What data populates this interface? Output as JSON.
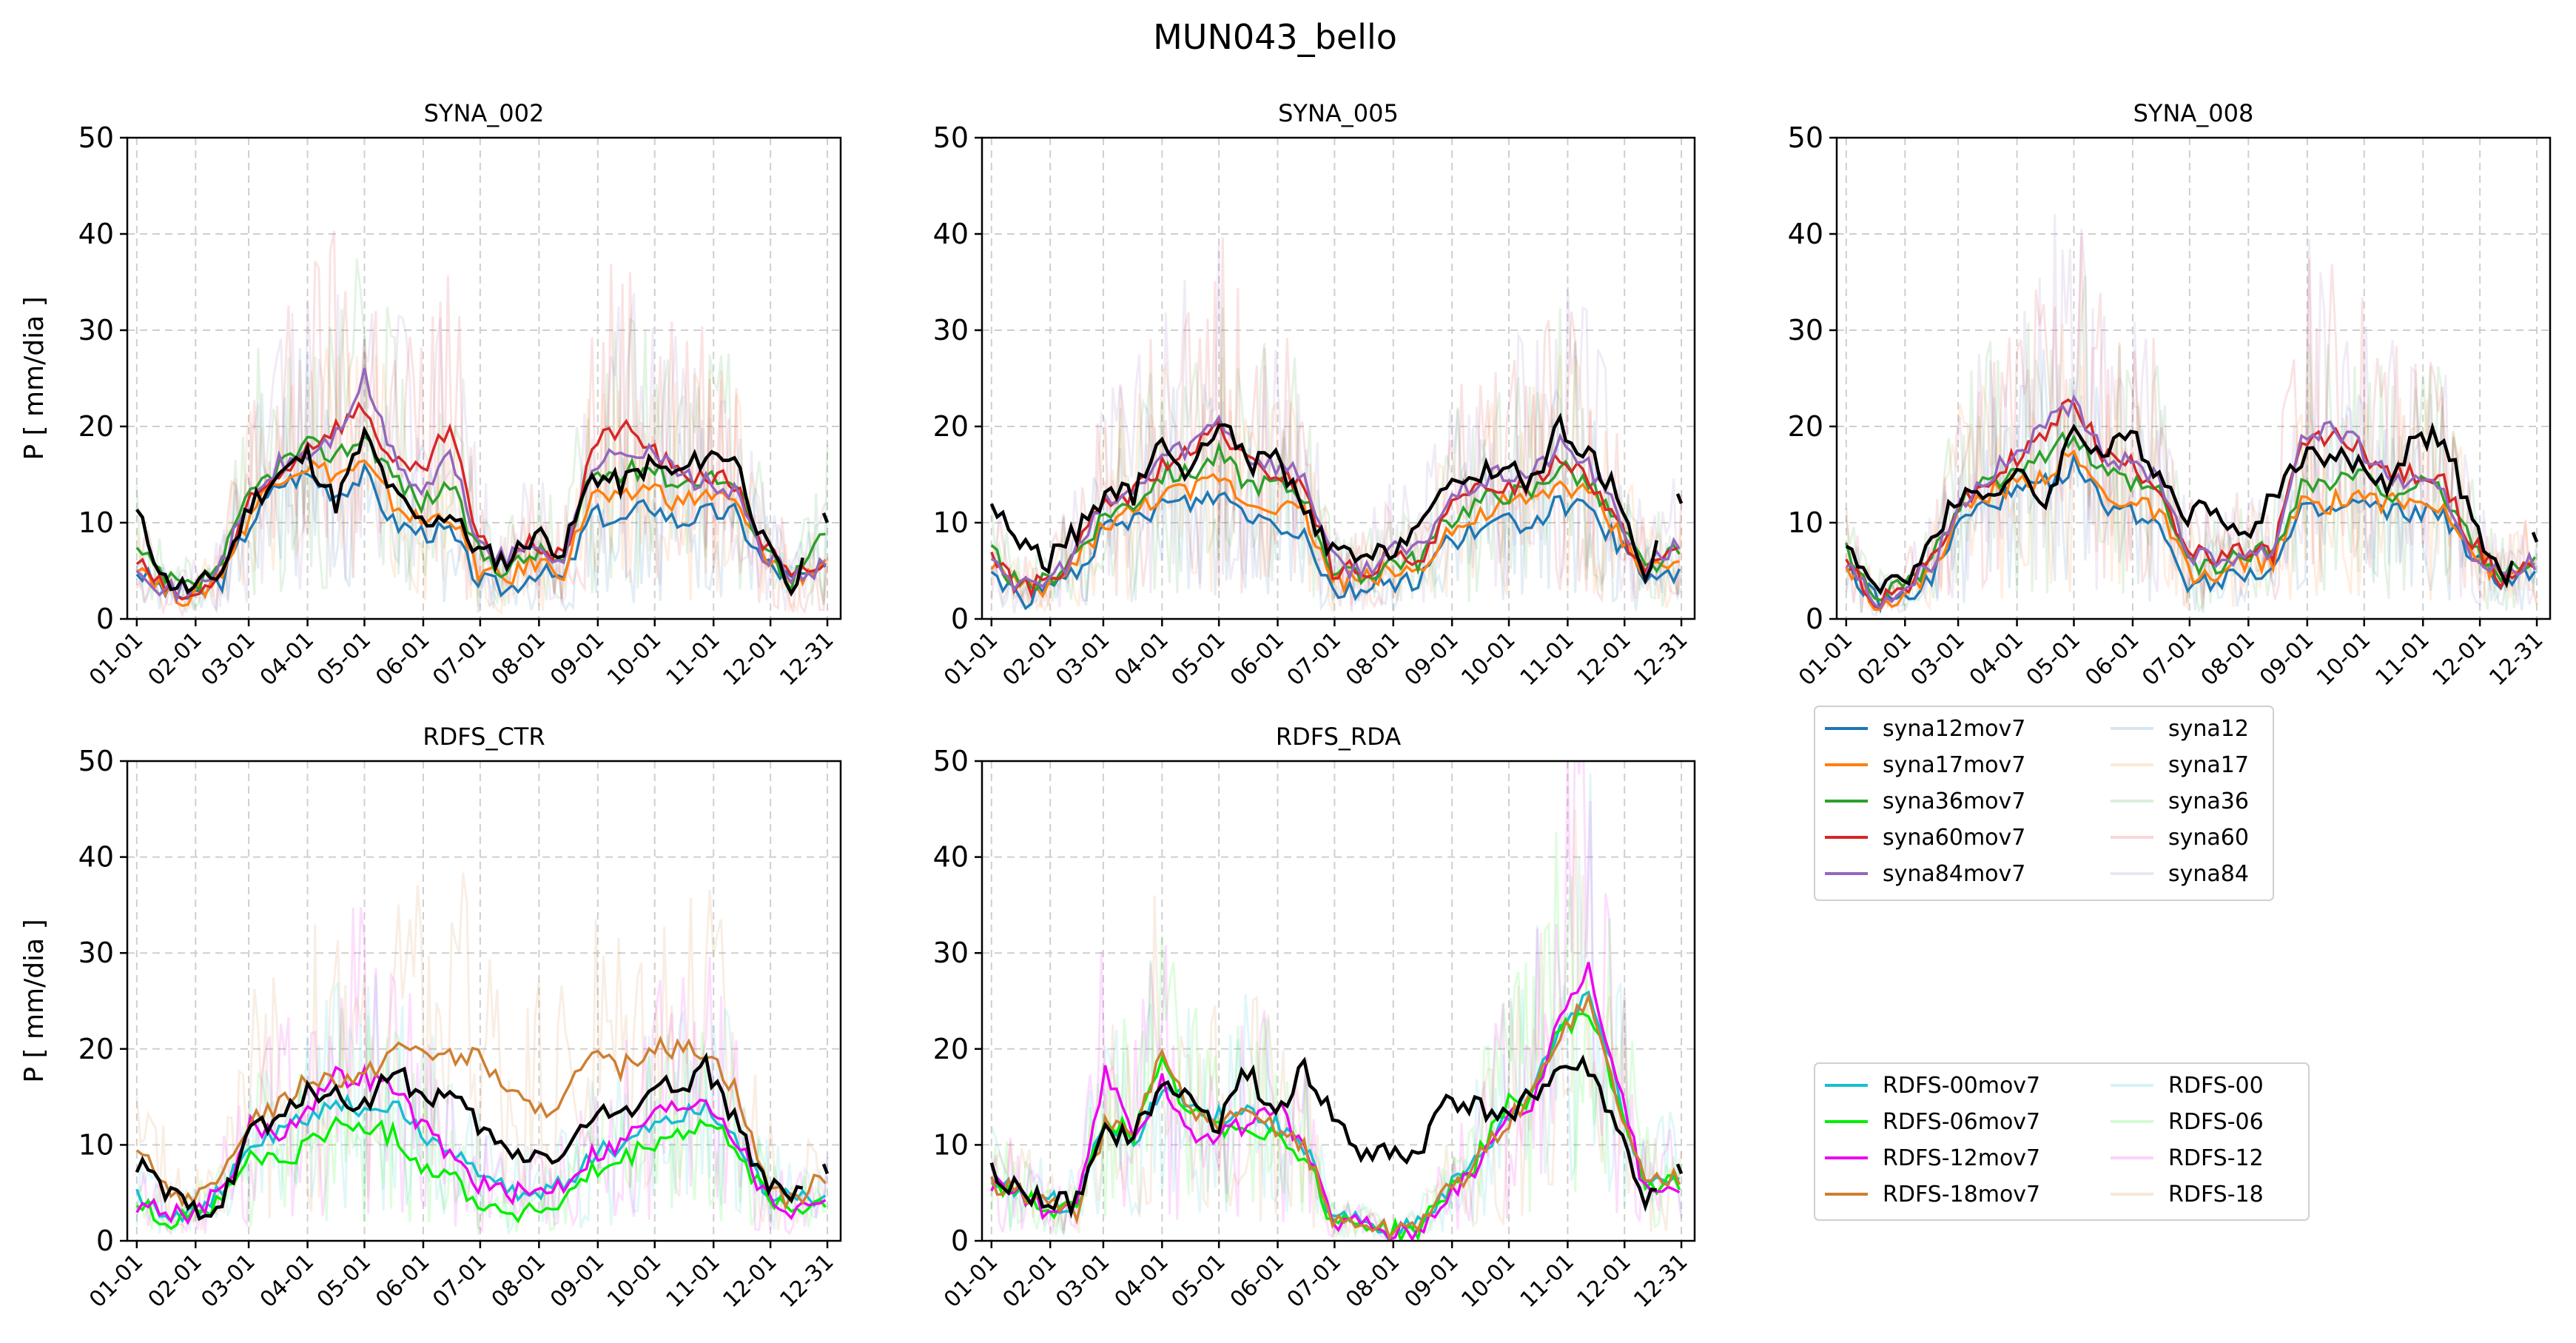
{
  "figure": {
    "title": "MUN043_bello"
  },
  "months": [
    "01-01",
    "02-01",
    "03-01",
    "04-01",
    "05-01",
    "06-01",
    "07-01",
    "08-01",
    "09-01",
    "10-01",
    "11-01",
    "12-01",
    "12-31"
  ],
  "month_days": [
    0,
    31,
    59,
    90,
    120,
    151,
    181,
    212,
    243,
    273,
    304,
    334,
    364
  ],
  "ylabel": "P [ mm/dia ]",
  "yticks": [
    0,
    10,
    20,
    30,
    40,
    50
  ],
  "colors": {
    "syna12": "#1f77b4",
    "syna17": "#ff7f0e",
    "syna36": "#2ca02c",
    "syna60": "#d62728",
    "syna84": "#9467bd",
    "RDFS-00": "#17becf",
    "RDFS-06": "#00ee00",
    "RDFS-12": "#ee00ee",
    "RDFS-18": "#cd7f32",
    "obs": "#000000"
  },
  "legend_syna": {
    "left": [
      "syna12mov7",
      "syna17mov7",
      "syna36mov7",
      "syna60mov7",
      "syna84mov7"
    ],
    "right": [
      "syna12",
      "syna17",
      "syna36",
      "syna60",
      "syna84"
    ]
  },
  "legend_rdfs": {
    "left": [
      "RDFS-00mov7",
      "RDFS-06mov7",
      "RDFS-12mov7",
      "RDFS-18mov7"
    ],
    "right": [
      "RDFS-00",
      "RDFS-06",
      "RDFS-12",
      "RDFS-18"
    ]
  },
  "chart_data": [
    {
      "type": "line",
      "title": "SYNA_002",
      "xlabel": "",
      "ylabel": "P [ mm/dia ]",
      "ylim": [
        0,
        50
      ],
      "grid": true,
      "x_unit": "day of year (0 = 01-01)",
      "x": [
        0,
        15,
        30,
        45,
        60,
        75,
        90,
        105,
        120,
        135,
        150,
        165,
        180,
        195,
        210,
        225,
        240,
        255,
        270,
        285,
        300,
        315,
        330,
        345,
        364
      ],
      "observed": [
        11,
        4,
        3,
        5,
        12,
        15,
        17,
        12,
        19,
        13,
        10,
        11,
        7,
        6,
        9,
        7,
        15,
        14,
        16,
        15,
        17,
        17,
        8,
        3,
        10
      ],
      "series": [
        {
          "name": "syna12mov7",
          "values": [
            5,
            3,
            2,
            4,
            10,
            14,
            15,
            13,
            15,
            10,
            9,
            9,
            4,
            3,
            5,
            4,
            11,
            10,
            12,
            10,
            11,
            11,
            6,
            4,
            5
          ]
        },
        {
          "name": "syna17mov7",
          "values": [
            6,
            3,
            2,
            5,
            11,
            15,
            16,
            15,
            16,
            12,
            10,
            11,
            5,
            4,
            6,
            5,
            13,
            12,
            14,
            12,
            13,
            12,
            7,
            4,
            6
          ]
        },
        {
          "name": "syna36mov7",
          "values": [
            7,
            4,
            3,
            6,
            13,
            16,
            18,
            17,
            19,
            15,
            12,
            14,
            7,
            5,
            7,
            6,
            15,
            15,
            16,
            14,
            15,
            14,
            8,
            4,
            9
          ]
        },
        {
          "name": "syna60mov7",
          "values": [
            6,
            3,
            2,
            5,
            12,
            15,
            18,
            20,
            22,
            16,
            15,
            20,
            8,
            6,
            8,
            6,
            18,
            20,
            18,
            15,
            15,
            14,
            8,
            4,
            6
          ]
        },
        {
          "name": "syna84mov7",
          "values": [
            6,
            3,
            3,
            6,
            12,
            16,
            17,
            19,
            25,
            17,
            13,
            17,
            8,
            6,
            8,
            6,
            16,
            17,
            18,
            15,
            14,
            13,
            7,
            4,
            6
          ]
        }
      ]
    },
    {
      "type": "line",
      "title": "SYNA_005",
      "xlabel": "",
      "ylabel": "",
      "ylim": [
        0,
        50
      ],
      "grid": true,
      "x_unit": "day of year (0 = 01-01)",
      "x": [
        0,
        15,
        30,
        45,
        60,
        75,
        90,
        105,
        120,
        135,
        150,
        165,
        180,
        195,
        210,
        225,
        240,
        255,
        270,
        285,
        300,
        315,
        330,
        345,
        364
      ],
      "observed": [
        12,
        8,
        6,
        9,
        13,
        13,
        18,
        15,
        21,
        16,
        17,
        11,
        7,
        6,
        7,
        10,
        13,
        15,
        16,
        14,
        20,
        17,
        13,
        5,
        12
      ],
      "series": [
        {
          "name": "syna12mov7",
          "values": [
            5,
            2,
            3,
            5,
            9,
            10,
            12,
            12,
            13,
            11,
            10,
            9,
            3,
            3,
            4,
            4,
            8,
            9,
            10,
            10,
            12,
            11,
            8,
            4,
            5
          ]
        },
        {
          "name": "syna17mov7",
          "values": [
            6,
            3,
            3,
            6,
            10,
            11,
            13,
            13,
            15,
            12,
            12,
            11,
            4,
            4,
            5,
            5,
            9,
            10,
            12,
            12,
            14,
            13,
            9,
            5,
            6
          ]
        },
        {
          "name": "syna36mov7",
          "values": [
            7,
            3,
            4,
            7,
            11,
            12,
            15,
            15,
            17,
            14,
            14,
            13,
            5,
            4,
            6,
            6,
            10,
            12,
            13,
            13,
            16,
            14,
            10,
            5,
            7
          ]
        },
        {
          "name": "syna60mov7",
          "values": [
            7,
            3,
            4,
            7,
            12,
            13,
            16,
            17,
            20,
            16,
            15,
            14,
            5,
            5,
            6,
            6,
            11,
            13,
            14,
            14,
            17,
            15,
            10,
            5,
            8
          ]
        },
        {
          "name": "syna84mov7",
          "values": [
            7,
            3,
            4,
            7,
            12,
            13,
            17,
            18,
            21,
            17,
            16,
            15,
            6,
            5,
            7,
            7,
            12,
            14,
            15,
            15,
            18,
            16,
            11,
            5,
            8
          ]
        }
      ]
    },
    {
      "type": "line",
      "title": "SYNA_008",
      "xlabel": "",
      "ylabel": "",
      "ylim": [
        0,
        50
      ],
      "grid": true,
      "x_unit": "day of year (0 = 01-01)",
      "x": [
        0,
        15,
        30,
        45,
        60,
        75,
        90,
        105,
        120,
        135,
        150,
        165,
        180,
        195,
        210,
        225,
        240,
        255,
        270,
        285,
        300,
        315,
        330,
        345,
        364
      ],
      "observed": [
        8,
        3,
        4,
        8,
        13,
        13,
        15,
        12,
        20,
        17,
        19,
        15,
        11,
        12,
        8,
        13,
        17,
        17,
        16,
        14,
        19,
        19,
        10,
        4,
        8
      ],
      "series": [
        {
          "name": "syna12mov7",
          "values": [
            5,
            2,
            2,
            4,
            10,
            12,
            13,
            14,
            16,
            12,
            11,
            10,
            4,
            4,
            5,
            5,
            11,
            11,
            12,
            11,
            11,
            11,
            6,
            4,
            5
          ]
        },
        {
          "name": "syna17mov7",
          "values": [
            6,
            2,
            2,
            5,
            11,
            13,
            14,
            15,
            17,
            13,
            12,
            11,
            5,
            4,
            6,
            6,
            12,
            12,
            13,
            12,
            12,
            12,
            7,
            4,
            6
          ]
        },
        {
          "name": "syna36mov7",
          "values": [
            7,
            3,
            3,
            6,
            12,
            14,
            16,
            17,
            19,
            15,
            14,
            13,
            6,
            5,
            7,
            7,
            14,
            14,
            15,
            13,
            14,
            13,
            8,
            4,
            7
          ]
        },
        {
          "name": "syna60mov7",
          "values": [
            6,
            2,
            3,
            6,
            12,
            14,
            17,
            19,
            23,
            17,
            16,
            14,
            7,
            6,
            7,
            7,
            18,
            19,
            18,
            15,
            15,
            14,
            8,
            4,
            6
          ]
        },
        {
          "name": "syna84mov7",
          "values": [
            6,
            2,
            3,
            6,
            12,
            15,
            17,
            20,
            22,
            17,
            16,
            15,
            7,
            6,
            7,
            7,
            19,
            20,
            18,
            15,
            14,
            13,
            7,
            4,
            6
          ]
        }
      ]
    },
    {
      "type": "line",
      "title": "RDFS_CTR",
      "xlabel": "",
      "ylabel": "P [ mm/dia ]",
      "ylim": [
        0,
        50
      ],
      "grid": true,
      "x_unit": "day of year (0 = 01-01)",
      "x": [
        0,
        15,
        30,
        45,
        60,
        75,
        90,
        105,
        120,
        135,
        150,
        165,
        180,
        195,
        210,
        225,
        240,
        255,
        270,
        285,
        300,
        315,
        330,
        345,
        364
      ],
      "observed": [
        8,
        5,
        3,
        4,
        12,
        12,
        16,
        15,
        14,
        18,
        15,
        15,
        12,
        9,
        9,
        9,
        13,
        13,
        16,
        16,
        18,
        13,
        6,
        4,
        7
      ],
      "series": [
        {
          "name": "RDFS-00mov7",
          "values": [
            5,
            3,
            3,
            5,
            10,
            11,
            13,
            14,
            14,
            14,
            11,
            10,
            7,
            5,
            5,
            6,
            9,
            10,
            12,
            13,
            14,
            11,
            6,
            4,
            5
          ]
        },
        {
          "name": "RDFS-06mov7",
          "values": [
            4,
            2,
            3,
            4,
            9,
            8,
            10,
            12,
            12,
            11,
            8,
            7,
            4,
            3,
            3,
            4,
            7,
            8,
            10,
            11,
            12,
            10,
            5,
            3,
            4
          ]
        },
        {
          "name": "RDFS-12mov7",
          "values": [
            4,
            3,
            3,
            5,
            12,
            11,
            14,
            17,
            17,
            16,
            12,
            9,
            6,
            5,
            5,
            6,
            9,
            10,
            13,
            14,
            15,
            11,
            5,
            3,
            5
          ]
        },
        {
          "name": "RDFS-18mov7",
          "values": [
            9,
            6,
            4,
            6,
            13,
            14,
            17,
            17,
            17,
            20,
            20,
            19,
            19,
            16,
            13,
            15,
            19,
            18,
            20,
            20,
            20,
            16,
            7,
            4,
            7
          ]
        }
      ]
    },
    {
      "type": "line",
      "title": "RDFS_RDA",
      "xlabel": "",
      "ylabel": "",
      "ylim": [
        0,
        50
      ],
      "grid": true,
      "x_unit": "day of year (0 = 01-01)",
      "x": [
        0,
        15,
        30,
        45,
        60,
        75,
        90,
        105,
        120,
        135,
        150,
        165,
        180,
        195,
        210,
        225,
        240,
        255,
        270,
        285,
        300,
        315,
        330,
        345,
        364
      ],
      "observed": [
        7,
        5,
        4,
        4,
        11,
        11,
        16,
        15,
        12,
        18,
        13,
        18,
        13,
        9,
        9,
        9,
        15,
        14,
        13,
        15,
        18,
        18,
        12,
        4,
        7
      ],
      "series": [
        {
          "name": "RDFS-00mov7",
          "values": [
            6,
            5,
            4,
            4,
            13,
            10,
            16,
            14,
            13,
            13,
            12,
            10,
            2,
            2,
            1,
            2,
            5,
            8,
            12,
            16,
            22,
            26,
            16,
            6,
            7
          ]
        },
        {
          "name": "RDFS-06mov7",
          "values": [
            6,
            5,
            3,
            3,
            13,
            11,
            18,
            13,
            12,
            12,
            11,
            9,
            2,
            2,
            1,
            1,
            5,
            8,
            14,
            15,
            22,
            24,
            15,
            6,
            6
          ]
        },
        {
          "name": "RDFS-12mov7",
          "values": [
            6,
            5,
            3,
            3,
            18,
            10,
            17,
            11,
            11,
            12,
            14,
            10,
            2,
            2,
            1,
            1,
            5,
            7,
            13,
            14,
            24,
            28,
            17,
            5,
            6
          ]
        },
        {
          "name": "RDFS-18mov7",
          "values": [
            6,
            5,
            4,
            3,
            12,
            11,
            20,
            13,
            12,
            13,
            12,
            10,
            2,
            2,
            1,
            2,
            5,
            8,
            12,
            15,
            22,
            25,
            15,
            6,
            7
          ]
        }
      ]
    }
  ]
}
